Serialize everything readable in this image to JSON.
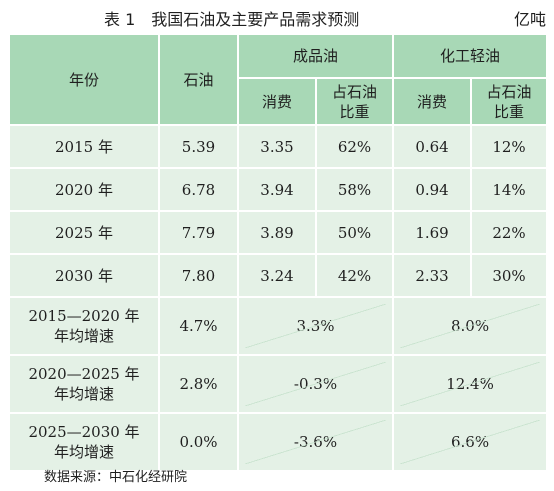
{
  "header": {
    "caption": "表 1　我国石油及主要产品需求预测",
    "unit": "亿吨"
  },
  "table": {
    "col_year": "年份",
    "col_oil": "石油",
    "group_refined": "成品油",
    "group_chem": "化工轻油",
    "sub_consumption": "消费",
    "sub_share": "占石油比重",
    "rows": [
      {
        "year": "2015 年",
        "oil": "5.39",
        "refined_consumption": "3.35",
        "refined_share": "62%",
        "chem_consumption": "0.64",
        "chem_share": "12%"
      },
      {
        "year": "2020 年",
        "oil": "6.78",
        "refined_consumption": "3.94",
        "refined_share": "58%",
        "chem_consumption": "0.94",
        "chem_share": "14%"
      },
      {
        "year": "2025 年",
        "oil": "7.79",
        "refined_consumption": "3.89",
        "refined_share": "50%",
        "chem_consumption": "1.69",
        "chem_share": "22%"
      },
      {
        "year": "2030 年",
        "oil": "7.80",
        "refined_consumption": "3.24",
        "refined_share": "42%",
        "chem_consumption": "2.33",
        "chem_share": "30%"
      }
    ],
    "growth_rows": [
      {
        "period": "2015—2020 年年均增速",
        "oil": "4.7%",
        "refined": "3.3%",
        "chem": "8.0%"
      },
      {
        "period": "2020—2025 年年均增速",
        "oil": "2.8%",
        "refined": "-0.3%",
        "chem": "12.4%"
      },
      {
        "period": "2025—2030 年年均增速",
        "oil": "0.0%",
        "refined": "-3.6%",
        "chem": "6.6%"
      }
    ]
  },
  "footer": {
    "source": "数据来源：中石化经研院"
  },
  "colors": {
    "header_fill": "#a8d8b6",
    "body_fill": "#e4f1e6"
  }
}
